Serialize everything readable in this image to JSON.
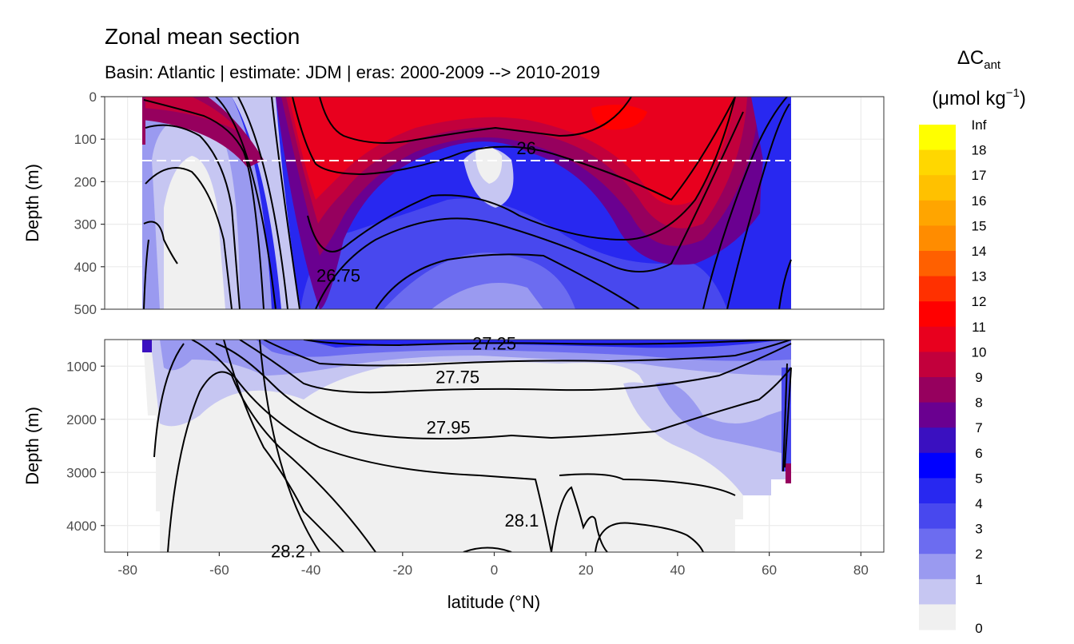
{
  "chart_data": {
    "type": "contour-section",
    "title": "Zonal mean section",
    "subtitle": "Basin: Atlantic | estimate: JDM  | eras: 2000-2009 --> 2010-2019",
    "xlabel": "latitude (°N)",
    "ylabel": "Depth (m)",
    "x_ticks": [
      -80,
      -60,
      -40,
      -20,
      0,
      20,
      40,
      60,
      80
    ],
    "x_tick_labels": [
      "-80",
      "-60",
      "-40",
      "-20",
      "0",
      "20",
      "40",
      "60",
      "80"
    ],
    "xlim": [
      -85,
      85
    ],
    "top_panel": {
      "ylim": [
        0,
        500
      ],
      "y_ticks": [
        0,
        100,
        200,
        300,
        400,
        500
      ],
      "y_tick_labels": [
        "0",
        "100",
        "200",
        "300",
        "400",
        "500"
      ],
      "reference_line_depth": 150
    },
    "bottom_panel": {
      "ylim": [
        500,
        4500
      ],
      "y_ticks": [
        1000,
        2000,
        3000,
        4000
      ],
      "y_tick_labels": [
        "1000",
        "2000",
        "3000",
        "4000"
      ]
    },
    "data_lat_range": [
      -77,
      64.5
    ],
    "contour_labels": [
      {
        "text": "26",
        "lat": 7,
        "depth": 120,
        "panel": "top"
      },
      {
        "text": "26.75",
        "lat": -34,
        "depth": 420,
        "panel": "top"
      },
      {
        "text": "27.25",
        "lat": 0,
        "depth": 570,
        "panel": "bottom"
      },
      {
        "text": "27.75",
        "lat": -8,
        "depth": 1200,
        "panel": "bottom"
      },
      {
        "text": "27.95",
        "lat": -10,
        "depth": 2150,
        "panel": "bottom"
      },
      {
        "text": "28.1",
        "lat": 6,
        "depth": 3900,
        "panel": "bottom"
      },
      {
        "text": "28.2",
        "lat": -45,
        "depth": 4480,
        "panel": "bottom"
      }
    ],
    "legend": {
      "title": "ΔC",
      "title_subscript": "ant",
      "unit_prefix": "(μmol kg",
      "unit_exponent": "−1",
      "unit_suffix": ")",
      "labels": [
        "Inf",
        "18",
        "17",
        "16",
        "15",
        "14",
        "13",
        "12",
        "11",
        "10",
        "9",
        "8",
        "7",
        "6",
        "5",
        "4",
        "3",
        "2",
        "1",
        "0"
      ],
      "colors": [
        "#ffff00",
        "#ffd700",
        "#ffc100",
        "#ffa500",
        "#ff8c00",
        "#ff6000",
        "#ff3000",
        "#ff0000",
        "#e8001e",
        "#c2003c",
        "#96005e",
        "#6a0090",
        "#3a10c0",
        "#0000ff",
        "#2828f0",
        "#4848ee",
        "#6c6cf0",
        "#9a9af0",
        "#c6c6f2",
        "#f0f0f0"
      ]
    }
  }
}
